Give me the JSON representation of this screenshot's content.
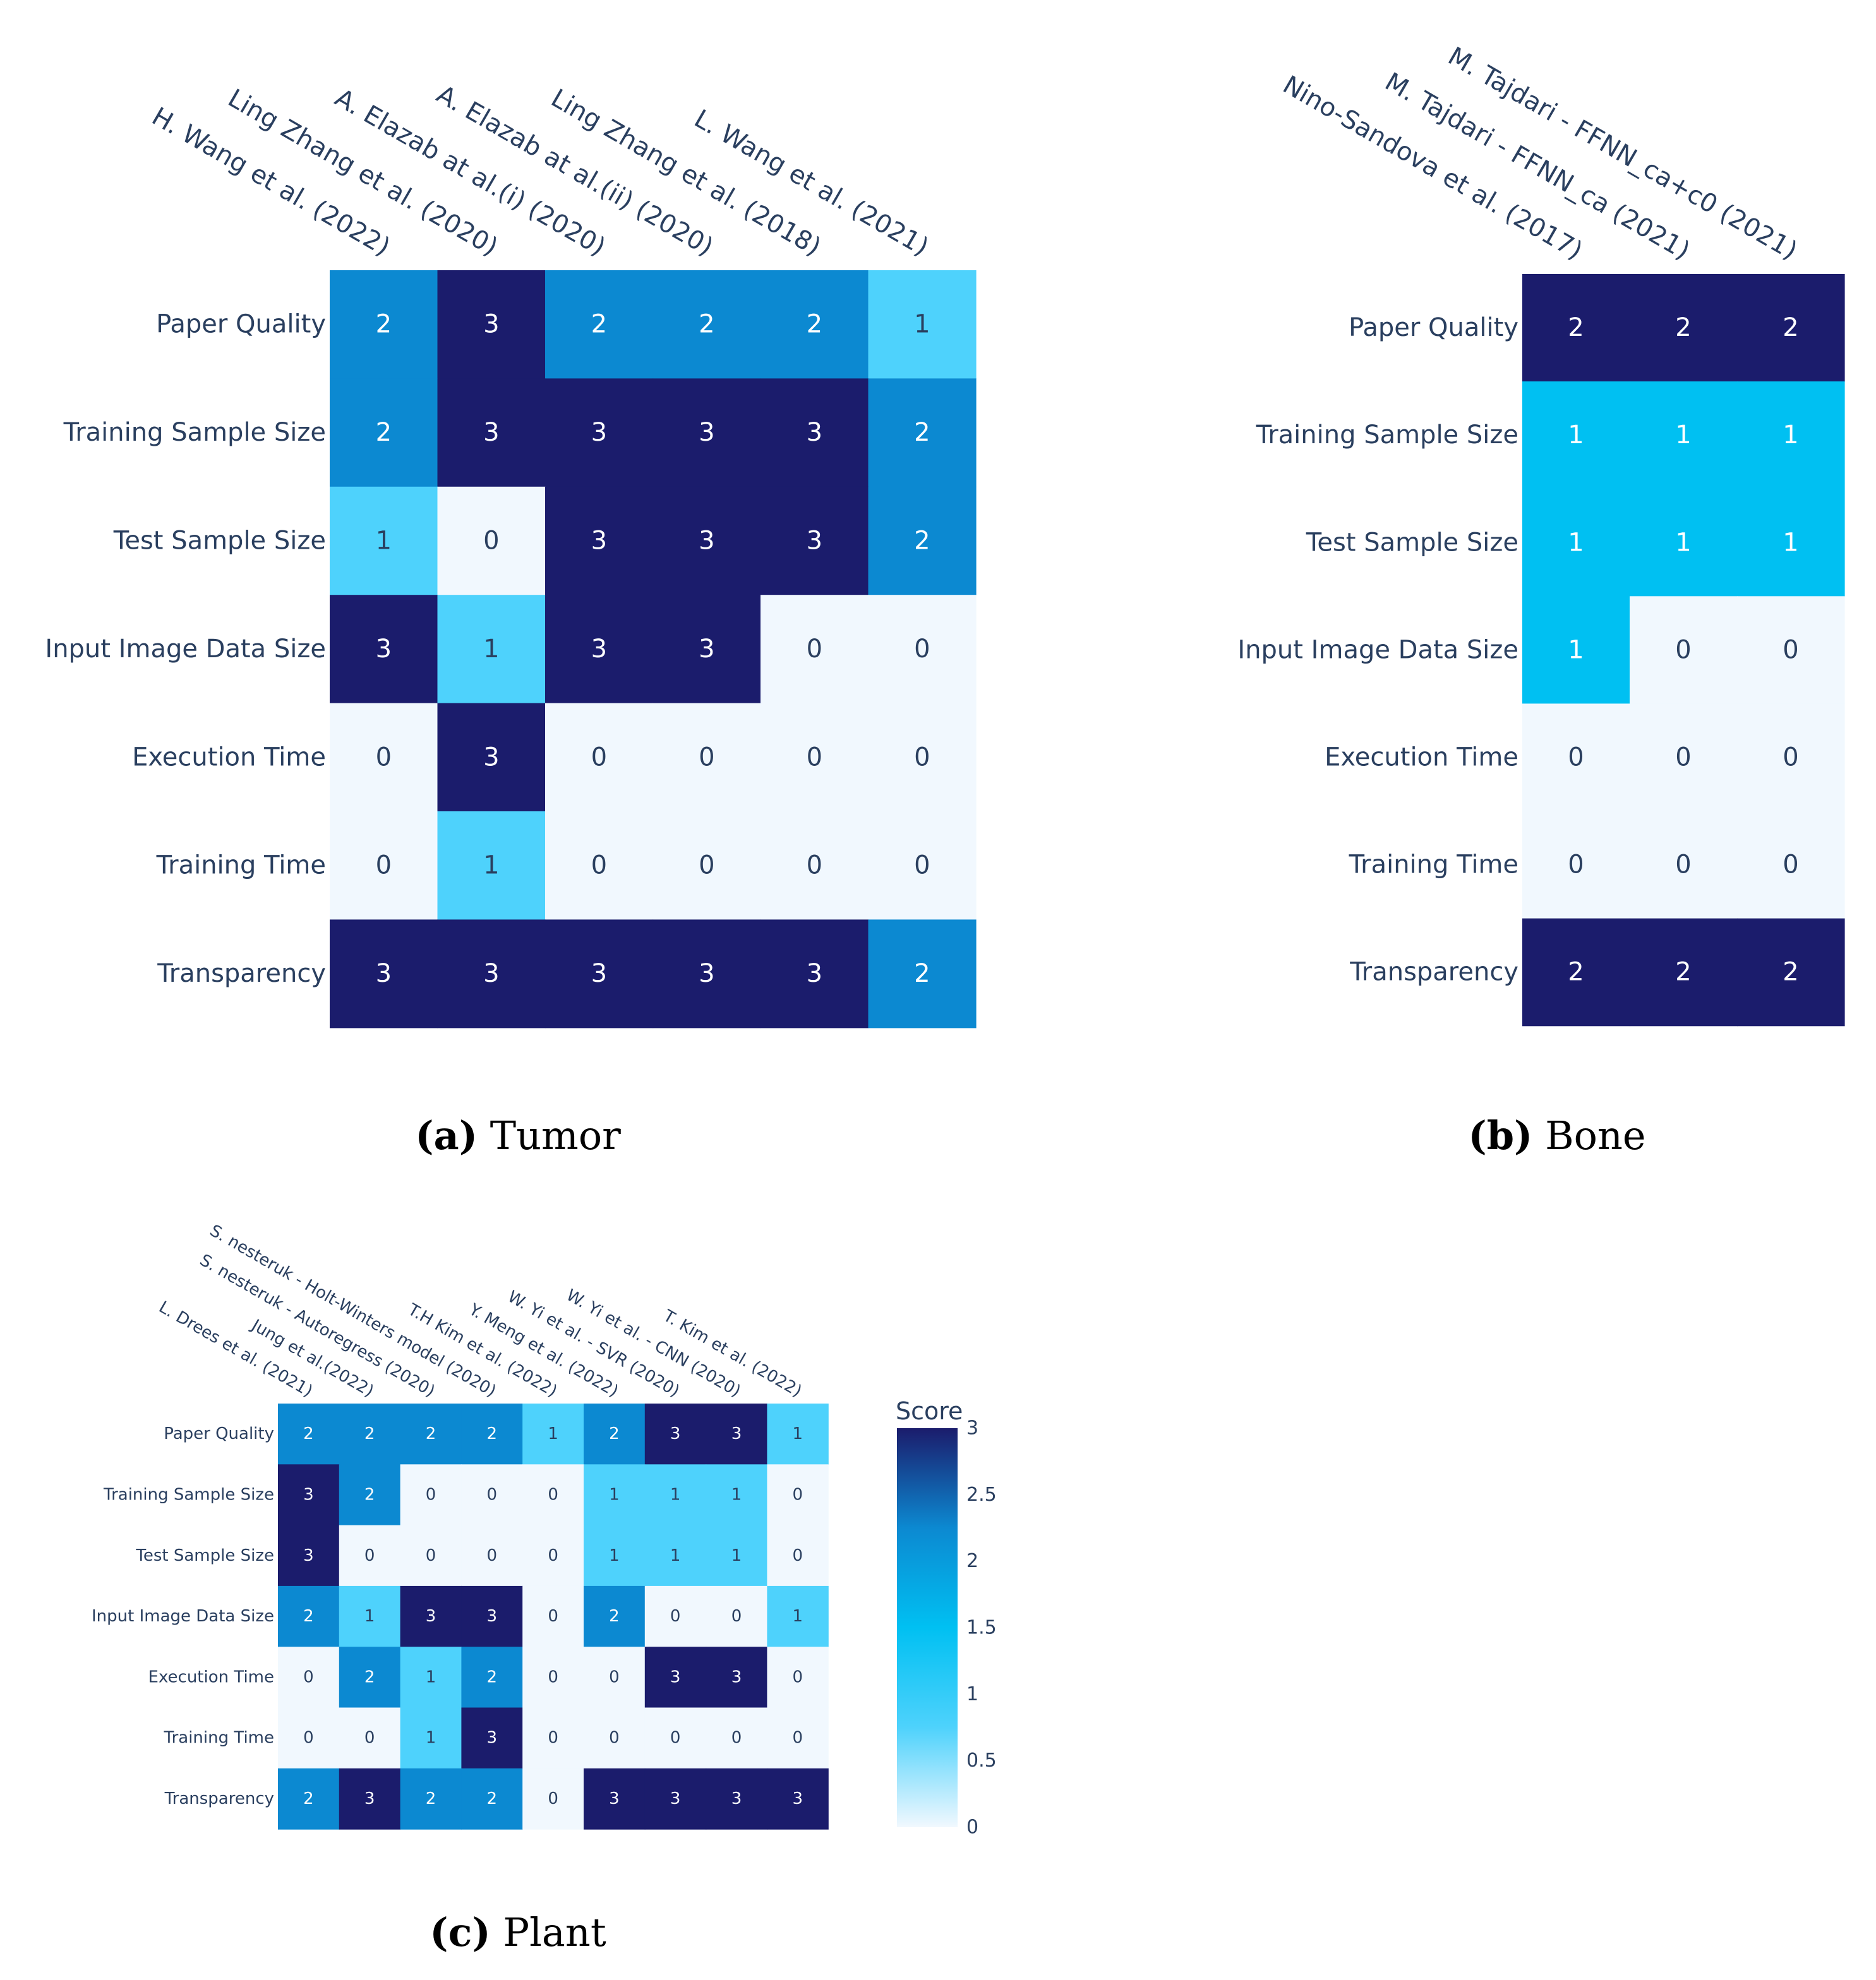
{
  "colorscale": [
    "#f1f8fe",
    "#4ed2fc",
    "#00c0f2",
    "#0c89d1",
    "#1b1c6c"
  ],
  "colorbar": {
    "title": "Score",
    "ticks": [
      "0",
      "0.5",
      "1",
      "1.5",
      "2",
      "2.5",
      "3"
    ],
    "range": [
      0,
      3
    ]
  },
  "chart_data": [
    {
      "type": "heatmap",
      "caption_tag": "(a)",
      "caption_text": "Tumor",
      "rows": [
        "Paper Quality",
        "Training Sample Size",
        "Test Sample Size",
        "Input Image Data Size",
        "Execution Time",
        "Training Time",
        "Transparency"
      ],
      "columns": [
        "H. Wang et al. (2022)",
        "Ling Zhang et al. (2020)",
        "A. Elazab at al.(i) (2020)",
        "A. Elazab at al.(ii) (2020)",
        "Ling Zhang et al. (2018)",
        "L. Wang et al. (2021)"
      ],
      "values": [
        [
          2,
          3,
          2,
          2,
          2,
          1
        ],
        [
          2,
          3,
          3,
          3,
          3,
          2
        ],
        [
          1,
          0,
          3,
          3,
          3,
          2
        ],
        [
          3,
          1,
          3,
          3,
          0,
          0
        ],
        [
          0,
          3,
          0,
          0,
          0,
          0
        ],
        [
          0,
          1,
          0,
          0,
          0,
          0
        ],
        [
          3,
          3,
          3,
          3,
          3,
          2
        ]
      ],
      "zrange": [
        0,
        3
      ]
    },
    {
      "type": "heatmap",
      "caption_tag": "(b)",
      "caption_text": "Bone",
      "rows": [
        "Paper Quality",
        "Training Sample Size",
        "Test Sample Size",
        "Input Image Data Size",
        "Execution Time",
        "Training Time",
        "Transparency"
      ],
      "columns": [
        "Nino-Sandova et al. (2017)",
        "M. Tajdari - FFNN_ca (2021)",
        "M. Tajdari - FFNN_ca+c0 (2021)"
      ],
      "values": [
        [
          2,
          2,
          2
        ],
        [
          1,
          1,
          1
        ],
        [
          1,
          1,
          1
        ],
        [
          1,
          0,
          0
        ],
        [
          0,
          0,
          0
        ],
        [
          0,
          0,
          0
        ],
        [
          2,
          2,
          2
        ]
      ],
      "zrange": [
        0,
        2
      ]
    },
    {
      "type": "heatmap",
      "caption_tag": "(c)",
      "caption_text": "Plant",
      "rows": [
        "Paper Quality",
        "Training Sample Size",
        "Test Sample Size",
        "Input Image Data Size",
        "Execution Time",
        "Training Time",
        "Transparency"
      ],
      "columns": [
        "L. Drees et al.  (2021)",
        "Jung et al.(2022)",
        "S. nesteruk - Autoregress (2020)",
        "S. nesteruk - Holt-Winters model (2020)",
        "T.H Kim et al. (2022)",
        "Y. Meng et al. (2022)",
        "W. Yi et al. - SVR (2020)",
        "W. Yi et al. - CNN (2020)",
        "T. Kim et al. (2022)"
      ],
      "values": [
        [
          2,
          2,
          2,
          2,
          1,
          2,
          3,
          3,
          1
        ],
        [
          3,
          2,
          0,
          0,
          0,
          1,
          1,
          1,
          0
        ],
        [
          3,
          0,
          0,
          0,
          0,
          1,
          1,
          1,
          0
        ],
        [
          2,
          1,
          3,
          3,
          0,
          2,
          0,
          0,
          1
        ],
        [
          0,
          2,
          1,
          2,
          0,
          0,
          3,
          3,
          0
        ],
        [
          0,
          0,
          1,
          3,
          0,
          0,
          0,
          0,
          0
        ],
        [
          2,
          3,
          2,
          2,
          0,
          3,
          3,
          3,
          3
        ]
      ],
      "zrange": [
        0,
        3
      ]
    }
  ]
}
